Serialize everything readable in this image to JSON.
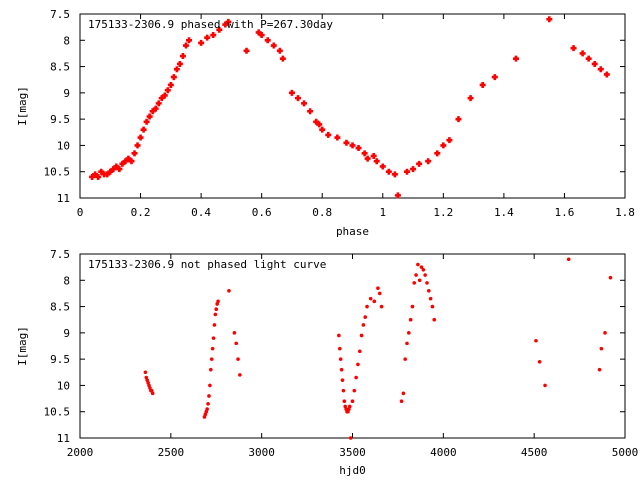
{
  "chart_data": [
    {
      "type": "scatter",
      "title": "175133-2306.9 phased with P=267.30day",
      "xlabel": "phase",
      "ylabel": "I[mag]",
      "xlim": [
        0,
        1.8
      ],
      "ylim": [
        11,
        7.5
      ],
      "y_inverted": true,
      "grid": false,
      "xticks": [
        "0",
        "0.2",
        "0.4",
        "0.6",
        "0.8",
        "1",
        "1.2",
        "1.4",
        "1.6",
        "1.8"
      ],
      "yticks": [
        "7.5",
        "8",
        "8.5",
        "9",
        "9.5",
        "10",
        "10.5",
        "11"
      ],
      "marker": "plus",
      "color": "#ff0000",
      "series": [
        {
          "x": [
            0.04,
            0.05,
            0.06,
            0.07,
            0.08,
            0.09,
            0.1,
            0.11,
            0.12,
            0.13,
            0.14,
            0.15,
            0.16,
            0.17,
            0.18,
            0.19,
            0.2,
            0.21,
            0.22,
            0.23,
            0.24,
            0.25,
            0.26,
            0.27,
            0.28,
            0.29,
            0.3,
            0.31,
            0.32,
            0.33,
            0.34,
            0.35,
            0.36,
            0.4,
            0.42,
            0.44,
            0.46,
            0.48,
            0.49,
            0.55,
            0.59,
            0.6,
            0.62,
            0.64,
            0.66,
            0.67,
            0.7,
            0.72,
            0.74,
            0.76,
            0.78,
            0.79,
            0.8,
            0.82,
            0.85,
            0.88,
            0.9,
            0.92,
            0.94,
            0.95,
            0.97,
            0.98,
            1.0,
            1.02,
            1.04,
            1.05,
            1.08,
            1.1,
            1.12,
            1.15,
            1.18,
            1.2,
            1.22,
            1.25,
            1.29,
            1.33,
            1.37,
            1.44,
            1.55,
            1.63,
            1.66,
            1.68,
            1.7,
            1.72,
            1.74
          ],
          "y": [
            10.6,
            10.55,
            10.6,
            10.5,
            10.55,
            10.55,
            10.5,
            10.45,
            10.4,
            10.45,
            10.35,
            10.3,
            10.25,
            10.3,
            10.15,
            10.0,
            9.85,
            9.7,
            9.55,
            9.45,
            9.35,
            9.3,
            9.2,
            9.1,
            9.05,
            8.95,
            8.85,
            8.7,
            8.55,
            8.45,
            8.3,
            8.1,
            8.0,
            8.05,
            7.95,
            7.9,
            7.8,
            7.7,
            7.65,
            8.2,
            7.85,
            7.9,
            8.0,
            8.1,
            8.2,
            8.35,
            9.0,
            9.1,
            9.2,
            9.35,
            9.55,
            9.6,
            9.7,
            9.8,
            9.85,
            9.95,
            10.0,
            10.05,
            10.15,
            10.25,
            10.2,
            10.3,
            10.4,
            10.5,
            10.55,
            10.95,
            10.5,
            10.45,
            10.35,
            10.3,
            10.15,
            10.0,
            9.9,
            9.5,
            9.1,
            8.85,
            8.7,
            8.35,
            7.6,
            8.15,
            8.25,
            8.35,
            8.45,
            8.55,
            8.65
          ]
        }
      ]
    },
    {
      "type": "scatter",
      "title": "175133-2306.9 not phased light curve",
      "xlabel": "hjd0",
      "ylabel": "I[mag]",
      "xlim": [
        2000,
        5000
      ],
      "ylim": [
        11,
        7.5
      ],
      "y_inverted": true,
      "grid": false,
      "xticks": [
        "2000",
        "2500",
        "3000",
        "3500",
        "4000",
        "4500",
        "5000"
      ],
      "yticks": [
        "7.5",
        "8",
        "8.5",
        "9",
        "9.5",
        "10",
        "10.5",
        "11"
      ],
      "marker": "dot",
      "color": "#ff0000",
      "series": [
        {
          "x": [
            2360,
            2365,
            2370,
            2375,
            2380,
            2385,
            2390,
            2395,
            2400,
            2685,
            2690,
            2695,
            2700,
            2705,
            2710,
            2715,
            2720,
            2725,
            2730,
            2735,
            2740,
            2745,
            2750,
            2755,
            2760,
            2820,
            2850,
            2860,
            2870,
            2880,
            3425,
            3430,
            3435,
            3440,
            3445,
            3450,
            3455,
            3460,
            3465,
            3470,
            3475,
            3480,
            3485,
            3490,
            3500,
            3510,
            3520,
            3530,
            3540,
            3550,
            3560,
            3570,
            3580,
            3600,
            3620,
            3640,
            3650,
            3660,
            3770,
            3780,
            3790,
            3800,
            3810,
            3820,
            3830,
            3840,
            3850,
            3860,
            3870,
            3880,
            3890,
            3900,
            3910,
            3920,
            3930,
            3940,
            3950,
            4510,
            4530,
            4560,
            4690,
            4860,
            4870,
            4890,
            4920
          ],
          "y": [
            9.75,
            9.85,
            9.9,
            9.95,
            10.0,
            10.05,
            10.1,
            10.1,
            10.15,
            10.6,
            10.55,
            10.5,
            10.45,
            10.35,
            10.2,
            10.0,
            9.7,
            9.5,
            9.3,
            9.1,
            8.85,
            8.65,
            8.55,
            8.45,
            8.4,
            8.2,
            9.0,
            9.2,
            9.5,
            9.8,
            9.05,
            9.3,
            9.5,
            9.7,
            9.9,
            10.1,
            10.3,
            10.4,
            10.45,
            10.5,
            10.5,
            10.45,
            10.4,
            11.0,
            10.3,
            10.1,
            9.85,
            9.6,
            9.35,
            9.05,
            8.85,
            8.7,
            8.5,
            8.35,
            8.4,
            8.15,
            8.25,
            8.5,
            10.3,
            10.15,
            9.5,
            9.2,
            9.0,
            8.75,
            8.5,
            8.05,
            7.9,
            7.7,
            8.0,
            7.75,
            7.8,
            7.9,
            8.05,
            8.2,
            8.35,
            8.5,
            8.75,
            9.15,
            9.55,
            10.0,
            7.6,
            9.7,
            9.3,
            9.0,
            7.95
          ]
        }
      ]
    }
  ]
}
